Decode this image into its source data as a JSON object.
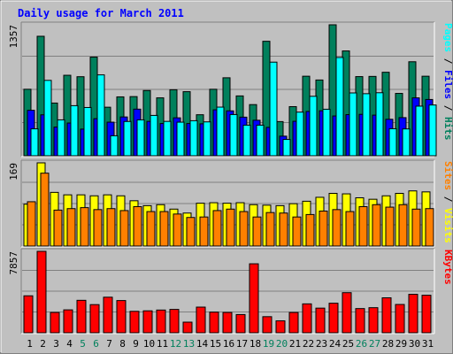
{
  "chart_data": {
    "type": "bar",
    "title": "Daily usage for March 2011",
    "colors": {
      "background": "#c0c0c0",
      "hits": "#00805c",
      "files": "#0000ff",
      "pages": "#00ffff",
      "visits": "#ffff00",
      "sites": "#ff8000",
      "kbytes": "#ff0000",
      "title": "#0000ff",
      "weekend": "#00805c",
      "weekday": "#000000"
    },
    "categories": [
      "1",
      "2",
      "3",
      "4",
      "5",
      "6",
      "7",
      "8",
      "9",
      "10",
      "11",
      "12",
      "13",
      "14",
      "15",
      "16",
      "17",
      "18",
      "19",
      "20",
      "21",
      "22",
      "23",
      "24",
      "25",
      "26",
      "27",
      "28",
      "29",
      "30",
      "31"
    ],
    "weekend_days": [
      "5",
      "6",
      "12",
      "13",
      "19",
      "20",
      "26",
      "27"
    ],
    "panels": [
      {
        "id": "hits-files-pages",
        "ymax_label": "1357",
        "ylim": [
          0,
          1357
        ],
        "label_parts": [
          {
            "text": "Pages",
            "color": "#00ffff"
          },
          {
            "text": " / ",
            "color": "#000000"
          },
          {
            "text": "Files",
            "color": "#0000ff"
          },
          {
            "text": " / ",
            "color": "#000000"
          },
          {
            "text": "Hits",
            "color": "#00805c"
          }
        ],
        "series": [
          {
            "key": "hits",
            "color": "#00805c",
            "values": [
              689,
              1238,
              546,
              834,
              819,
              1022,
              503,
              610,
              613,
              676,
              600,
              684,
              664,
              425,
              689,
              808,
              620,
              530,
              1186,
              354,
              509,
              824,
              785,
              1357,
              1086,
              820,
              822,
              865,
              646,
              974,
              824
            ]
          },
          {
            "key": "files",
            "color": "#0000ff",
            "values": [
              471,
              424,
              297,
              339,
              276,
              384,
              348,
              402,
              483,
              356,
              334,
              393,
              334,
              331,
              476,
              465,
              400,
              368,
              294,
              203,
              357,
              459,
              466,
              412,
              426,
              429,
              421,
              378,
              395,
              600,
              583
            ]
          },
          {
            "key": "pages",
            "color": "#00ffff",
            "values": [
              279,
              781,
              372,
              519,
              500,
              838,
              207,
              355,
              372,
              418,
              356,
              348,
              363,
              351,
              504,
              427,
              317,
              317,
              970,
              169,
              452,
              616,
              482,
              1018,
              651,
              643,
              653,
              280,
              278,
              514,
              526
            ]
          }
        ]
      },
      {
        "id": "visits-sites",
        "ymax_label": "169",
        "ylim": [
          0,
          169
        ],
        "label_parts": [
          {
            "text": "Sites",
            "color": "#ff8000"
          },
          {
            "text": " / ",
            "color": "#000000"
          },
          {
            "text": "Visits",
            "color": "#ffff00"
          }
        ],
        "series": [
          {
            "key": "visits",
            "color": "#ffff00",
            "values": [
              85,
              169,
              109,
              104,
              104,
              102,
              104,
              102,
              92,
              82,
              84,
              75,
              67,
              87,
              88,
              87,
              88,
              84,
              83,
              82,
              86,
              91,
              99,
              107,
              106,
              98,
              95,
              102,
              107,
              112,
              110
            ]
          },
          {
            "key": "sites",
            "color": "#ff8000",
            "values": [
              90,
              148,
              73,
              76,
              78,
              74,
              76,
              72,
              80,
              70,
              70,
              65,
              58,
              59,
              72,
              75,
              70,
              59,
              68,
              67,
              59,
              64,
              71,
              74,
              70,
              80,
              84,
              79,
              84,
              75,
              76
            ]
          }
        ]
      },
      {
        "id": "kbytes",
        "ymax_label": "7857",
        "ylim": [
          0,
          7857
        ],
        "label_parts": [
          {
            "text": "KBytes",
            "color": "#ff0000"
          }
        ],
        "series": [
          {
            "key": "kbytes",
            "color": "#ff0000",
            "values": [
              3566,
              7857,
              1960,
              2211,
              3131,
              2716,
              3431,
              3108,
              2068,
              2116,
              2193,
              2254,
              1024,
              2475,
              1989,
              1960,
              1757,
              6656,
              1552,
              1151,
              1958,
              2789,
              2378,
              2850,
              3869,
              2334,
              2420,
              3373,
              2730,
              3709,
              3621
            ]
          }
        ]
      }
    ]
  }
}
